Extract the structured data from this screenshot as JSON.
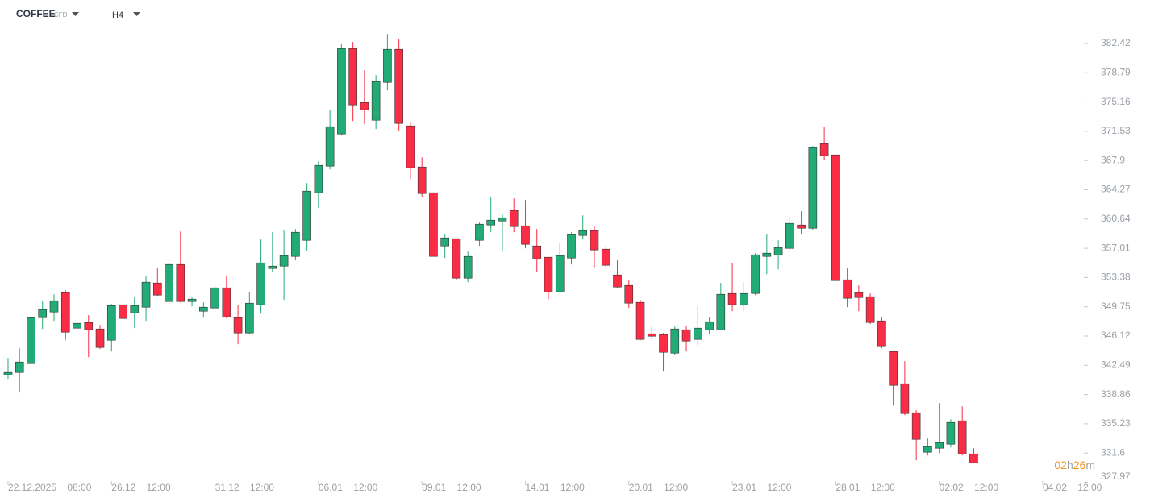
{
  "header": {
    "symbol": "COFFEE",
    "instrument_type": "CFD",
    "timeframe": "H4"
  },
  "countdown": {
    "hours": "02",
    "hours_unit": "h",
    "minutes": "26",
    "minutes_unit": "m"
  },
  "chart_data": {
    "type": "candlestick",
    "up_color": "#22ab76",
    "down_color": "#fb2c45",
    "open": [
      341.3,
      341.6,
      342.7,
      348.4,
      349.1,
      351.5,
      347.1,
      347.8,
      347.0,
      345.6,
      350.0,
      349.0,
      349.7,
      352.7,
      350.4,
      355.0,
      350.4,
      349.2,
      349.6,
      352.1,
      348.4,
      346.5,
      350.0,
      354.5,
      354.8,
      356.0,
      358.0,
      363.9,
      367.2,
      371.2,
      381.8,
      375.1,
      372.9,
      377.6,
      381.7,
      372.2,
      367.1,
      363.9,
      357.3,
      358.2,
      353.3,
      358.0,
      359.9,
      360.4,
      361.7,
      359.8,
      357.3,
      355.9,
      351.6,
      355.8,
      358.6,
      359.2,
      356.9,
      353.7,
      352.4,
      350.3,
      346.4,
      346.3,
      344.0,
      346.9,
      345.7,
      346.9,
      346.9,
      351.4,
      350.0,
      351.4,
      356.0,
      356.2,
      357.0,
      359.9,
      359.5,
      370.0,
      368.6,
      353.1,
      351.5,
      351.0,
      348.0,
      344.2,
      340.2,
      336.6,
      331.7,
      332.2,
      332.7,
      335.6,
      331.5
    ],
    "high": [
      343.4,
      344.6,
      349.2,
      350.4,
      351.3,
      351.8,
      348.5,
      348.7,
      347.5,
      350.1,
      350.6,
      351.0,
      353.5,
      354.6,
      355.6,
      359.1,
      350.9,
      350.3,
      352.6,
      353.6,
      350.0,
      351.6,
      358.1,
      359.0,
      359.2,
      359.4,
      365.1,
      367.8,
      374.2,
      382.3,
      382.6,
      379.1,
      378.5,
      383.6,
      383.0,
      372.6,
      368.3,
      363.9,
      358.7,
      358.2,
      356.6,
      360.2,
      363.4,
      361.2,
      363.2,
      363.0,
      359.4,
      355.9,
      357.6,
      359.0,
      361.1,
      359.7,
      357.2,
      355.5,
      353.0,
      350.6,
      347.3,
      346.5,
      347.3,
      347.4,
      349.8,
      348.5,
      352.7,
      355.2,
      352.8,
      356.4,
      358.8,
      358.0,
      360.9,
      361.6,
      369.7,
      372.1,
      368.6,
      354.5,
      352.4,
      351.4,
      348.5,
      344.3,
      343.0,
      336.9,
      333.4,
      337.8,
      335.8,
      337.4,
      332.2
    ],
    "low": [
      340.8,
      339.1,
      342.6,
      347.0,
      348.0,
      345.6,
      343.2,
      343.5,
      344.5,
      344.2,
      348.1,
      347.1,
      348.0,
      351.1,
      350.1,
      350.3,
      349.8,
      348.4,
      349.0,
      348.3,
      345.1,
      346.4,
      348.9,
      354.1,
      350.6,
      355.5,
      356.7,
      362.0,
      366.8,
      371.0,
      372.8,
      372.4,
      371.8,
      376.6,
      371.6,
      365.6,
      363.4,
      356.0,
      355.8,
      353.1,
      352.8,
      357.3,
      359.0,
      356.6,
      359.0,
      357.0,
      354.1,
      350.7,
      351.5,
      355.0,
      358.1,
      354.6,
      354.7,
      352.1,
      349.6,
      345.6,
      345.7,
      341.7,
      343.8,
      344.2,
      345.0,
      346.4,
      346.9,
      349.2,
      349.2,
      351.2,
      353.8,
      354.4,
      356.6,
      358.8,
      359.3,
      368.0,
      353.0,
      349.7,
      349.2,
      347.6,
      344.6,
      337.5,
      336.3,
      330.7,
      331.3,
      331.6,
      332.3,
      331.3,
      330.3
    ],
    "close": [
      341.6,
      342.9,
      348.4,
      349.4,
      350.5,
      346.6,
      347.7,
      346.9,
      344.7,
      349.9,
      348.3,
      349.9,
      352.8,
      351.2,
      355.0,
      350.4,
      350.7,
      349.7,
      352.1,
      348.5,
      346.5,
      350.2,
      355.2,
      354.8,
      356.1,
      359.0,
      364.1,
      367.3,
      372.1,
      381.8,
      374.8,
      374.2,
      377.7,
      381.7,
      372.5,
      367.0,
      363.8,
      356.0,
      358.3,
      353.3,
      356.0,
      360.0,
      360.5,
      360.8,
      359.7,
      357.5,
      355.7,
      351.6,
      356.1,
      358.7,
      359.2,
      356.8,
      354.9,
      352.2,
      350.2,
      345.7,
      346.1,
      344.1,
      347.0,
      345.5,
      347.1,
      347.9,
      351.3,
      350.0,
      351.4,
      356.2,
      356.4,
      357.1,
      360.1,
      359.5,
      369.5,
      368.5,
      353.0,
      350.8,
      350.9,
      347.8,
      344.8,
      340.0,
      336.5,
      333.3,
      332.4,
      332.9,
      335.4,
      331.5,
      330.4
    ],
    "xlim": [
      -0.7,
      93.3
    ],
    "xticks": [
      {
        "value": 0,
        "label": "22.12.2025 08:00"
      },
      {
        "value": 9,
        "label": "26.12 12:00"
      },
      {
        "value": 18,
        "label": "31.12 12:00"
      },
      {
        "value": 27,
        "label": "06.01 12:00"
      },
      {
        "value": 36,
        "label": "09.01 12:00"
      },
      {
        "value": 45,
        "label": "14.01 12:00"
      },
      {
        "value": 54,
        "label": "20.01 12:00"
      },
      {
        "value": 63,
        "label": "23.01 12:00"
      },
      {
        "value": 72,
        "label": "28.01 12:00"
      },
      {
        "value": 81,
        "label": "02.02 12:00"
      },
      {
        "value": 90,
        "label": "04.02 12:00"
      }
    ],
    "ylim": [
      327.97,
      383.82
    ],
    "yticks": [
      382.42,
      378.79,
      375.16,
      371.53,
      367.9,
      364.27,
      360.64,
      357.01,
      353.38,
      349.75,
      346.12,
      342.49,
      338.86,
      335.23,
      331.6,
      327.97
    ]
  }
}
